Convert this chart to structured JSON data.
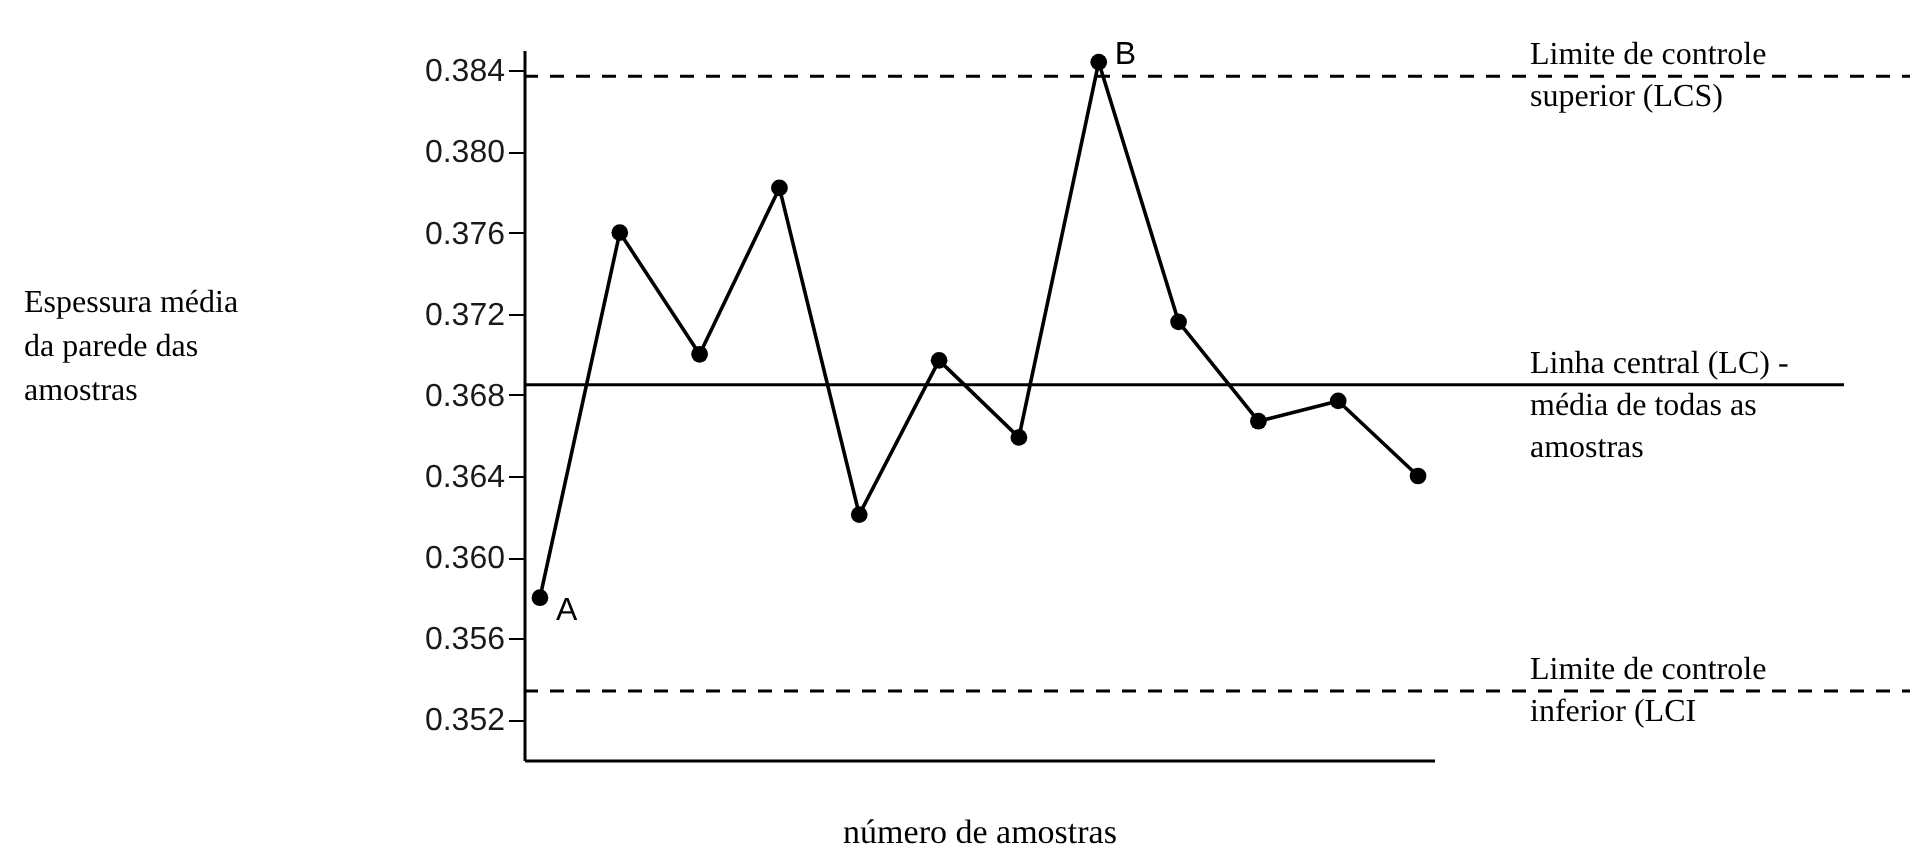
{
  "chart_data": {
    "type": "line",
    "xlabel": "número de amostras",
    "categories": [
      null,
      null,
      null,
      null,
      null,
      null,
      null,
      null,
      null,
      null,
      null,
      null
    ],
    "series": [
      {
        "color": "#000000",
        "values": [
          0.358,
          0.376,
          0.37,
          0.3782,
          0.3621,
          0.3697,
          0.3659,
          0.3844,
          0.3716,
          0.3667,
          0.3677,
          0.364
        ]
      }
    ],
    "ylim": [
      0.35,
      0.385
    ],
    "yticks": [
      0.352,
      0.356,
      {
        "value": 0.36,
        "label": "0.360"
      },
      0.364,
      0.368,
      0.372,
      0.376,
      {
        "value": 0.38,
        "label": "0.380"
      },
      0.384
    ],
    "ref_lines": [
      {
        "axis": "y",
        "value": 0.3837,
        "label": "Limite de controle\nsuperior (LCS)",
        "color": "#000000",
        "line_style": "dashed"
      },
      {
        "axis": "y",
        "value": 0.3685,
        "label": "Linha central (LC) -\nmédia de todas as\namostras",
        "color": "#000000",
        "line_style": "solid"
      },
      {
        "axis": "y",
        "value": 0.3534,
        "label": "Limite de controle\ninferior (LCI",
        "color": "#000000",
        "line_style": "dashed"
      }
    ],
    "annotations": [
      "Espessura média\nda parede das\namostras",
      "A",
      "B"
    ],
    "marker": "circle",
    "grid": false,
    "tick_labels": "y"
  }
}
